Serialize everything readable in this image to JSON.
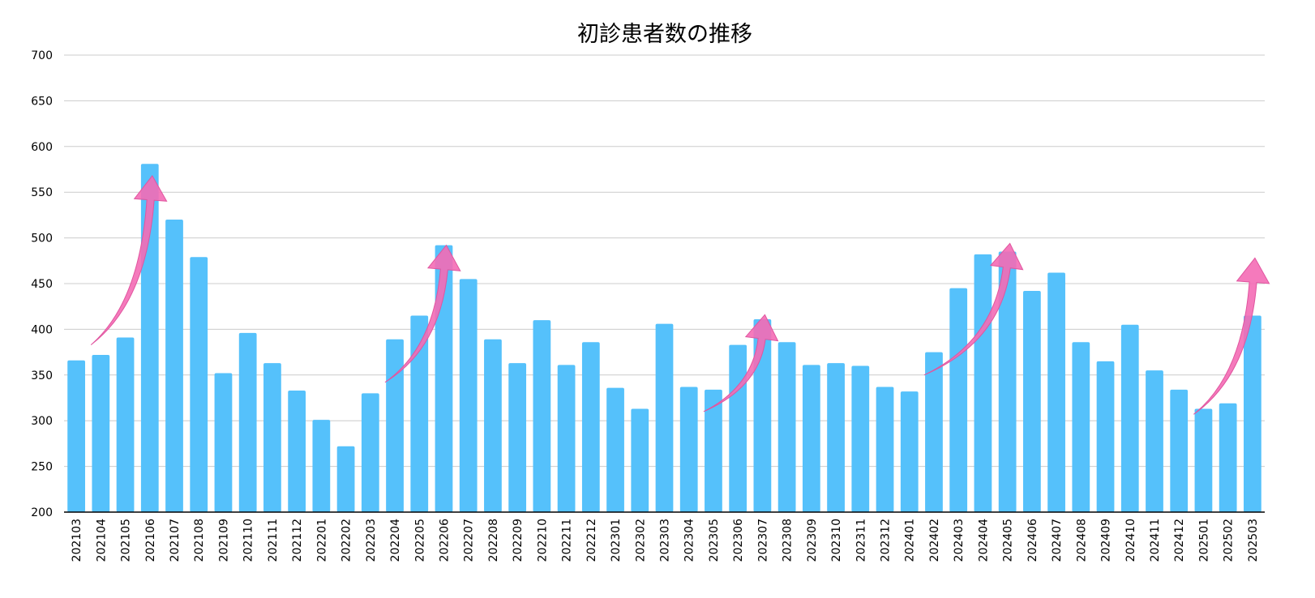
{
  "chart_data": {
    "type": "bar",
    "title": "初診患者数の推移",
    "xlabel": "",
    "ylabel": "",
    "ylim": [
      200,
      700
    ],
    "yticks": [
      200,
      250,
      300,
      350,
      400,
      450,
      500,
      550,
      600,
      650,
      700
    ],
    "grid": true,
    "bar_color": "#55C1FB",
    "arrow_color": "#F46BB5",
    "categories": [
      "202103",
      "202104",
      "202105",
      "202106",
      "202107",
      "202108",
      "202109",
      "202110",
      "202111",
      "202112",
      "202201",
      "202202",
      "202203",
      "202204",
      "202205",
      "202206",
      "202207",
      "202208",
      "202209",
      "202210",
      "202211",
      "202212",
      "202301",
      "202302",
      "202303",
      "202304",
      "202305",
      "202306",
      "202307",
      "202308",
      "202309",
      "202310",
      "202311",
      "202312",
      "202401",
      "202402",
      "202403",
      "202404",
      "202405",
      "202406",
      "202407",
      "202408",
      "202409",
      "202410",
      "202411",
      "202412",
      "202501",
      "202502",
      "202503"
    ],
    "values": [
      366,
      372,
      391,
      581,
      520,
      479,
      352,
      396,
      363,
      333,
      301,
      272,
      330,
      389,
      415,
      492,
      455,
      389,
      363,
      410,
      361,
      386,
      336,
      313,
      406,
      337,
      334,
      383,
      411,
      386,
      361,
      363,
      360,
      337,
      332,
      375,
      445,
      482,
      485,
      442,
      462,
      386,
      365,
      405,
      355,
      334,
      313,
      319,
      415
    ],
    "annotations": [
      {
        "type": "arrow",
        "from_category": "202104",
        "from_value": 383,
        "to_category": "202106",
        "to_value": 568
      },
      {
        "type": "arrow",
        "from_category": "202204",
        "from_value": 342,
        "to_category": "202206",
        "to_value": 492
      },
      {
        "type": "arrow",
        "from_category": "202305",
        "from_value": 310,
        "to_category": "202307",
        "to_value": 416
      },
      {
        "type": "arrow",
        "from_category": "202402",
        "from_value": 350,
        "to_category": "202405",
        "to_value": 494
      },
      {
        "type": "arrow",
        "from_category": "202501",
        "from_value": 307,
        "to_category": "202503",
        "to_value": 478
      }
    ]
  }
}
